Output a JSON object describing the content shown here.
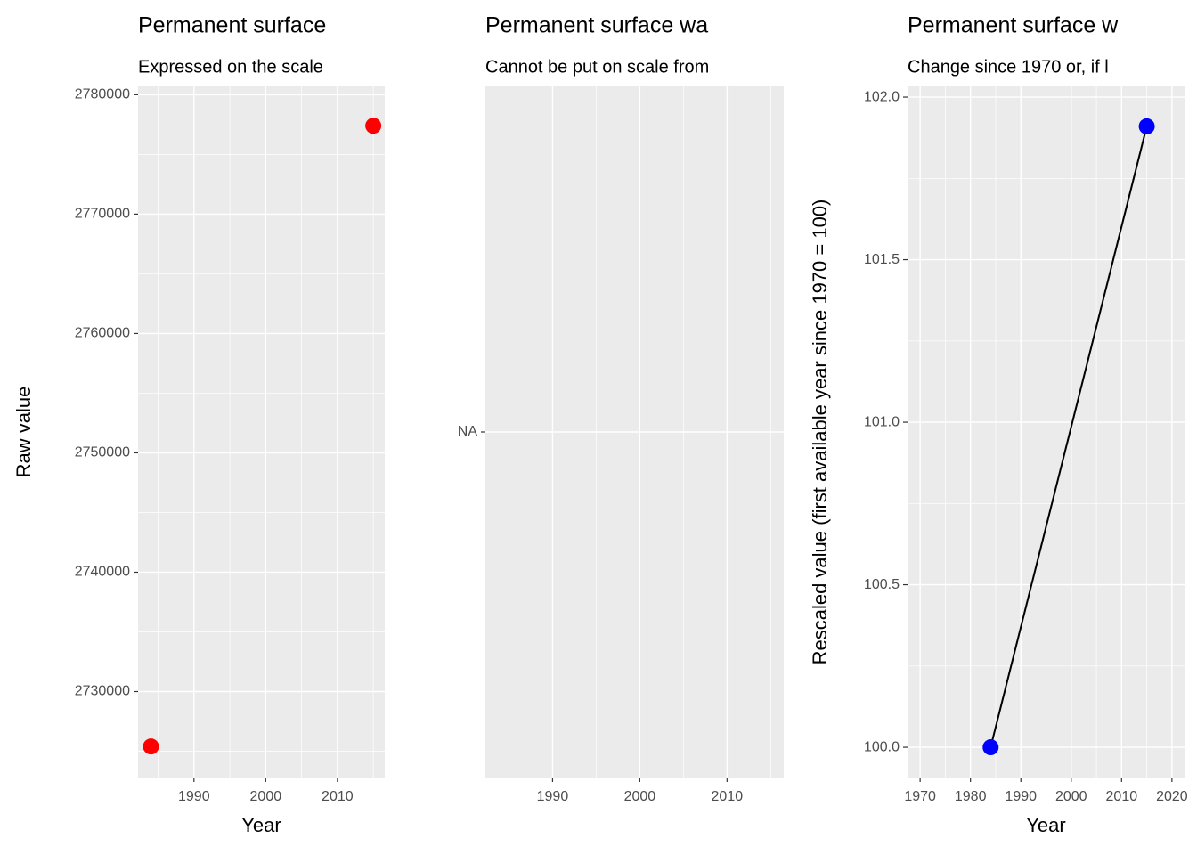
{
  "chart_data": [
    {
      "type": "scatter",
      "title": "Permanent surface",
      "subtitle": "Expressed on the scale",
      "x_label": "Year",
      "y_label": "Raw value",
      "x": [
        1984,
        2015
      ],
      "y": [
        2725400,
        2777400
      ],
      "color": "#ff0000",
      "xlim": [
        1982.2,
        2016.6
      ],
      "ylim": [
        2722800,
        2780700
      ],
      "xticks": [
        1990,
        2000,
        2010
      ],
      "yticks": [
        2730000,
        2740000,
        2750000,
        2760000,
        2770000,
        2780000
      ],
      "grid": true
    },
    {
      "type": "scatter",
      "title": "Permanent surface wa",
      "subtitle": "Cannot be put on scale from",
      "x": [],
      "y": [],
      "color": "#ff0000",
      "xlim": [
        1982.3,
        2016.5
      ],
      "xticks": [
        1990,
        2000,
        2010
      ],
      "ycategories": [
        "NA"
      ],
      "grid": true
    },
    {
      "type": "line",
      "title": "Permanent surface w",
      "subtitle": "Change since 1970 or, if l",
      "x_label": "Year",
      "y_label": "Rescaled value (first available year since 1970 = 100)",
      "x": [
        1984,
        2015
      ],
      "y": [
        100,
        101.91
      ],
      "color": "#0000ff",
      "line_color": "#000000",
      "xlim": [
        1967.5,
        2022.5
      ],
      "ylim": [
        99.907,
        102.033
      ],
      "xticks": [
        1970,
        1980,
        1990,
        2000,
        2010,
        2020
      ],
      "yticks": [
        {
          "value": 100,
          "label": "100.0"
        },
        {
          "value": 100.5,
          "label": "100.5"
        },
        {
          "value": 101,
          "label": "101.0"
        },
        {
          "value": 101.5,
          "label": "101.5"
        },
        {
          "value": 102,
          "label": "102.0"
        }
      ],
      "grid": true
    }
  ]
}
